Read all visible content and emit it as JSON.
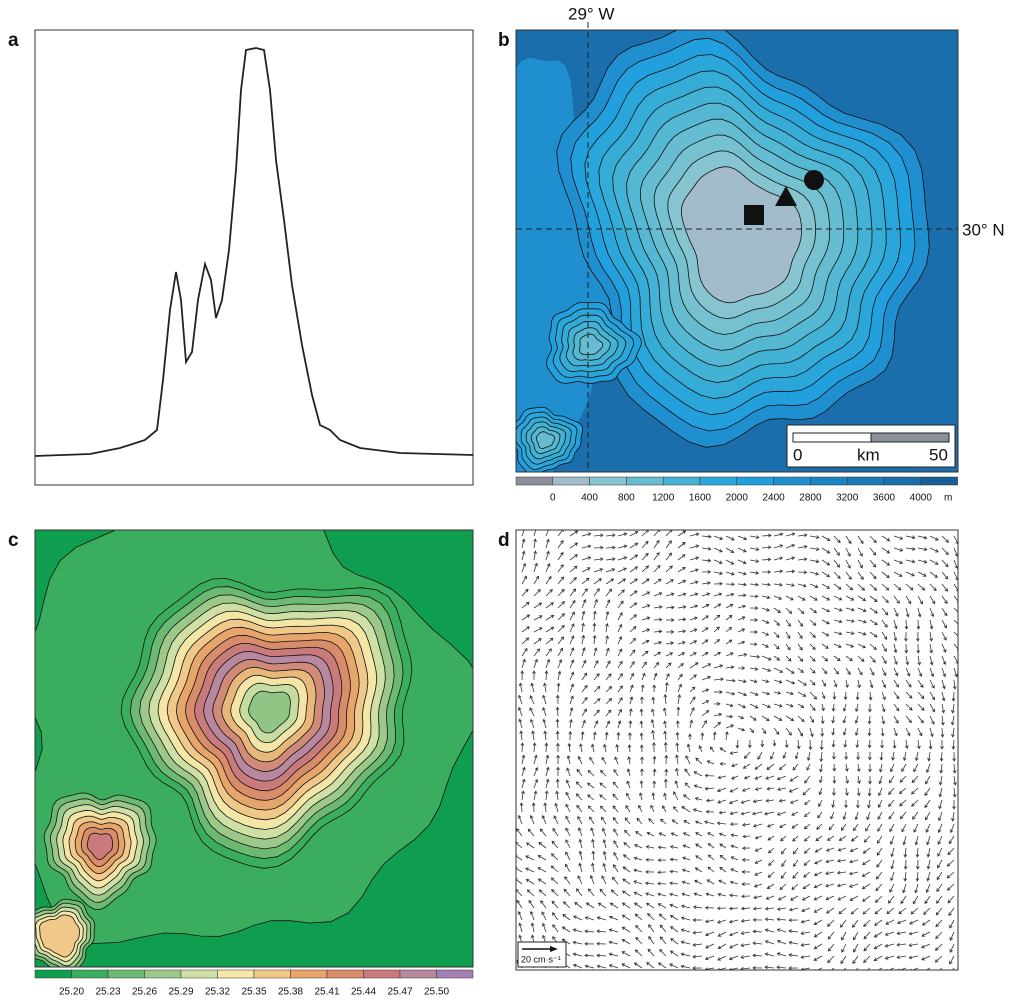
{
  "panels": {
    "a": {
      "label": "a"
    },
    "b": {
      "label": "b",
      "longitude": "29° W",
      "latitude": "30° N",
      "scale_bar": {
        "start": "0",
        "unit": "km",
        "end": "50"
      },
      "colorbar": {
        "labels": [
          "0",
          "400",
          "800",
          "1200",
          "1600",
          "2000",
          "2400",
          "2800",
          "3200",
          "3600",
          "4000"
        ],
        "unit": "m"
      }
    },
    "c": {
      "label": "c",
      "colorbar": {
        "labels": [
          "25.20",
          "25.23",
          "25.26",
          "25.29",
          "25.32",
          "25.35",
          "25.38",
          "25.41",
          "25.44",
          "25.47",
          "25.50"
        ]
      }
    },
    "d": {
      "label": "d",
      "reference_vector": "20 cm·s⁻¹"
    }
  }
}
